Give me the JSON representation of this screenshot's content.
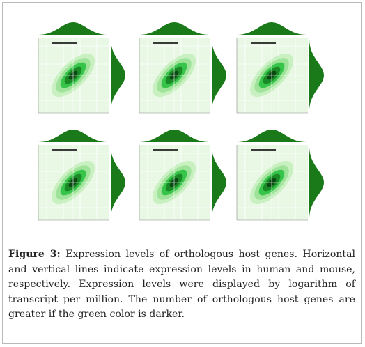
{
  "figure": {
    "label": "Figure 3:",
    "caption": "Expression levels of orthologous host genes. Horizontal and vertical lines indicate expression levels in human and mouse, respectively. Expression levels were displayed by logarithm of transcript per million. The number of orthologous host genes are greater if the green color is darker."
  },
  "colors": {
    "plot_bg": "#e8f8e4",
    "density_light": "#c8f0c0",
    "density_mid": "#37c44a",
    "density_dark": "#0a4a12",
    "marginal_fill": "#1a7a1a"
  },
  "chart_data": [
    {
      "type": "scatter",
      "panel": 1,
      "note": "2D density contour with marginal densities",
      "center": [
        0.5,
        0.5
      ]
    },
    {
      "type": "scatter",
      "panel": 2,
      "note": "2D density contour with marginal densities",
      "center": [
        0.5,
        0.5
      ]
    },
    {
      "type": "scatter",
      "panel": 3,
      "note": "2D density contour with marginal densities",
      "center": [
        0.5,
        0.5
      ]
    },
    {
      "type": "scatter",
      "panel": 4,
      "note": "2D density contour with marginal densities",
      "center": [
        0.5,
        0.5
      ]
    },
    {
      "type": "scatter",
      "panel": 5,
      "note": "2D density contour with marginal densities",
      "center": [
        0.5,
        0.5
      ]
    },
    {
      "type": "scatter",
      "panel": 6,
      "note": "2D density contour with marginal densities",
      "center": [
        0.5,
        0.5
      ]
    }
  ]
}
